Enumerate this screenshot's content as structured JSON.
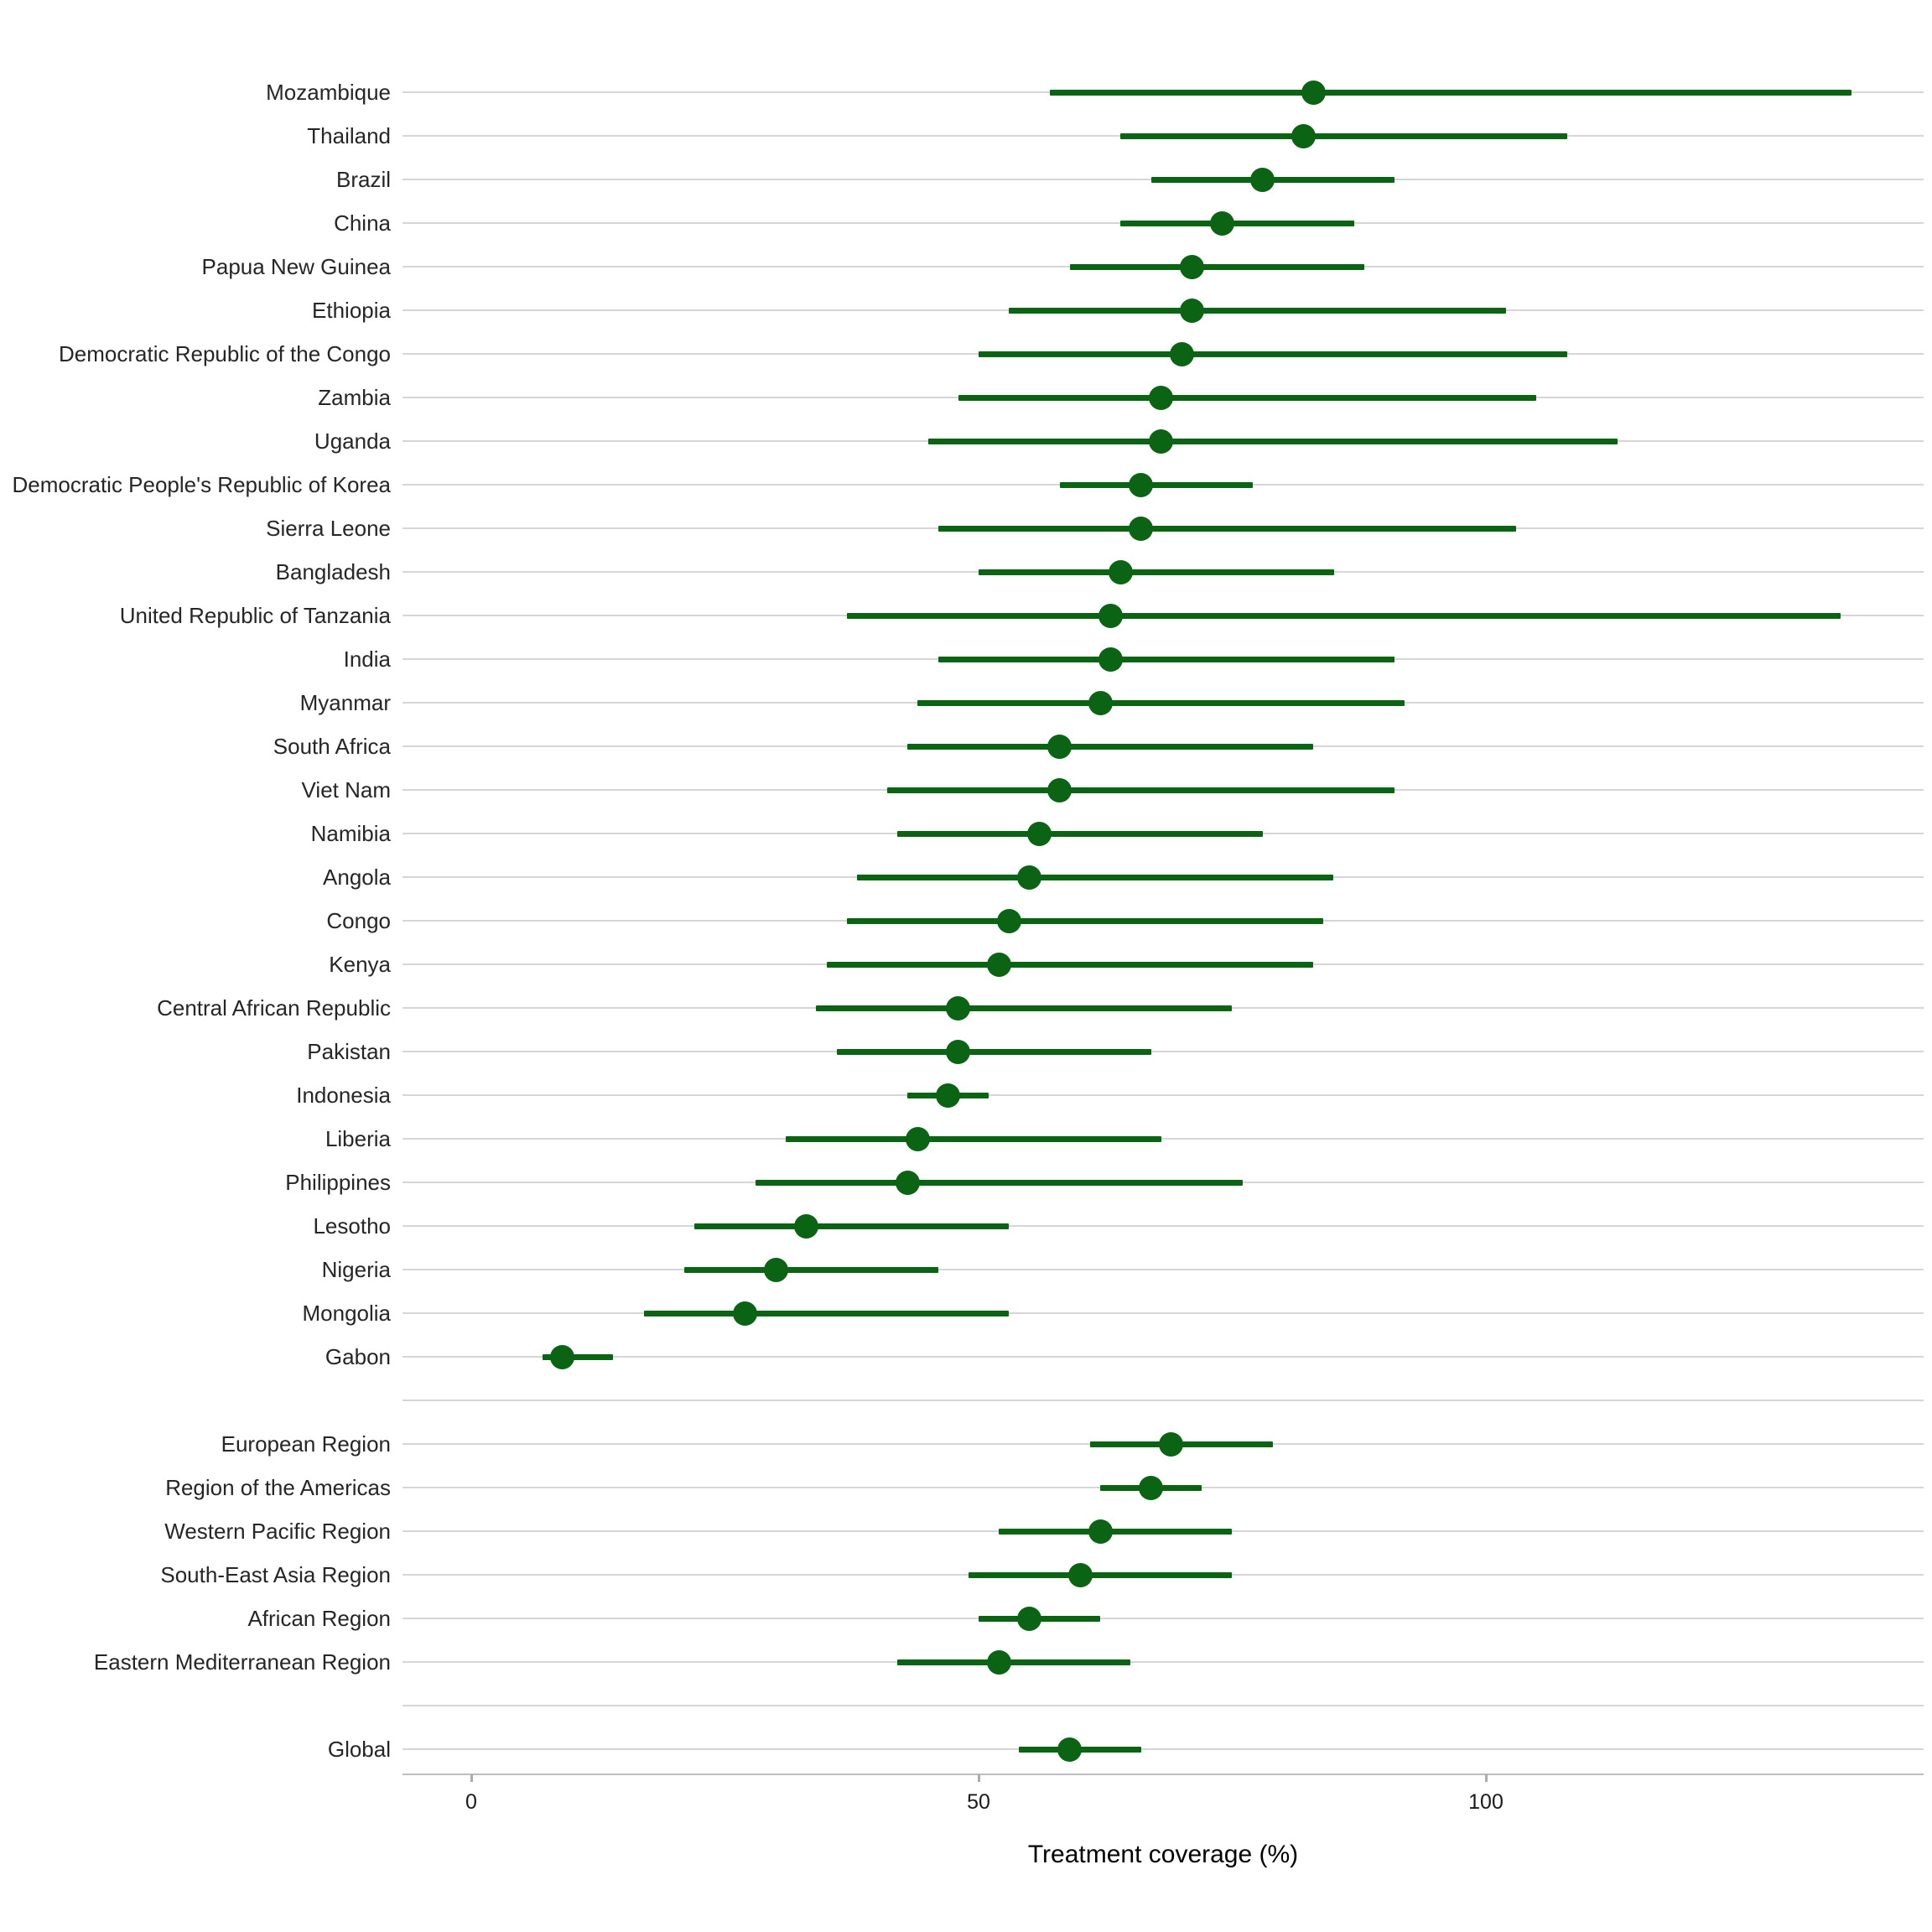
{
  "chart_data": {
    "type": "scatter",
    "subtype": "dot-with-error-bars",
    "title": "",
    "xlabel": "Treatment coverage (%)",
    "ylabel": "",
    "x_ticks": [
      0,
      50,
      100
    ],
    "xlim": [
      -7,
      144
    ],
    "grid": "horizontal-only",
    "legend": "none",
    "colors": {
      "point_and_interval": "#0a6413",
      "gridline": "#d6d6d6",
      "axis_line": "#bdbdbd",
      "tick_mark": "#ababab",
      "axis_text": "#1a1a1a",
      "label_text": "#262626",
      "background": "#ffffff"
    },
    "rows": [
      {
        "label": "Mozambique",
        "value": 83,
        "low": 57,
        "high": 136
      },
      {
        "label": "Thailand",
        "value": 82,
        "low": 64,
        "high": 108
      },
      {
        "label": "Brazil",
        "value": 78,
        "low": 67,
        "high": 91
      },
      {
        "label": "China",
        "value": 74,
        "low": 64,
        "high": 87
      },
      {
        "label": "Papua New Guinea",
        "value": 71,
        "low": 59,
        "high": 88
      },
      {
        "label": "Ethiopia",
        "value": 71,
        "low": 53,
        "high": 102
      },
      {
        "label": "Democratic Republic of the Congo",
        "value": 70,
        "low": 50,
        "high": 108
      },
      {
        "label": "Zambia",
        "value": 68,
        "low": 48,
        "high": 105
      },
      {
        "label": "Uganda",
        "value": 68,
        "low": 45,
        "high": 113
      },
      {
        "label": "Democratic People's Republic of Korea",
        "value": 66,
        "low": 58,
        "high": 77
      },
      {
        "label": "Sierra Leone",
        "value": 66,
        "low": 46,
        "high": 103
      },
      {
        "label": "Bangladesh",
        "value": 64,
        "low": 50,
        "high": 85
      },
      {
        "label": "United Republic of Tanzania",
        "value": 63,
        "low": 37,
        "high": 135
      },
      {
        "label": "India",
        "value": 63,
        "low": 46,
        "high": 91
      },
      {
        "label": "Myanmar",
        "value": 62,
        "low": 44,
        "high": 92
      },
      {
        "label": "South Africa",
        "value": 58,
        "low": 43,
        "high": 83
      },
      {
        "label": "Viet Nam",
        "value": 58,
        "low": 41,
        "high": 91
      },
      {
        "label": "Namibia",
        "value": 56,
        "low": 42,
        "high": 78
      },
      {
        "label": "Angola",
        "value": 55,
        "low": 38,
        "high": 85
      },
      {
        "label": "Congo",
        "value": 53,
        "low": 37,
        "high": 84
      },
      {
        "label": "Kenya",
        "value": 52,
        "low": 35,
        "high": 83
      },
      {
        "label": "Central African Republic",
        "value": 48,
        "low": 34,
        "high": 75
      },
      {
        "label": "Pakistan",
        "value": 48,
        "low": 36,
        "high": 67
      },
      {
        "label": "Indonesia",
        "value": 47,
        "low": 43,
        "high": 51
      },
      {
        "label": "Liberia",
        "value": 44,
        "low": 31,
        "high": 68
      },
      {
        "label": "Philippines",
        "value": 43,
        "low": 28,
        "high": 76
      },
      {
        "label": "Lesotho",
        "value": 33,
        "low": 22,
        "high": 53
      },
      {
        "label": "Nigeria",
        "value": 30,
        "low": 21,
        "high": 46
      },
      {
        "label": "Mongolia",
        "value": 27,
        "low": 17,
        "high": 53
      },
      {
        "label": "Gabon",
        "value": 9,
        "low": 7,
        "high": 14
      },
      {
        "label": "",
        "spacer": true
      },
      {
        "label": "European Region",
        "value": 69,
        "low": 61,
        "high": 79
      },
      {
        "label": "Region of the Americas",
        "value": 67,
        "low": 62,
        "high": 72
      },
      {
        "label": "Western Pacific Region",
        "value": 62,
        "low": 52,
        "high": 75
      },
      {
        "label": "South-East Asia Region",
        "value": 60,
        "low": 49,
        "high": 75
      },
      {
        "label": "African Region",
        "value": 55,
        "low": 50,
        "high": 62
      },
      {
        "label": "Eastern Mediterranean Region",
        "value": 52,
        "low": 42,
        "high": 65
      },
      {
        "label": "",
        "spacer": true
      },
      {
        "label": "Global",
        "value": 59,
        "low": 54,
        "high": 66
      }
    ]
  }
}
